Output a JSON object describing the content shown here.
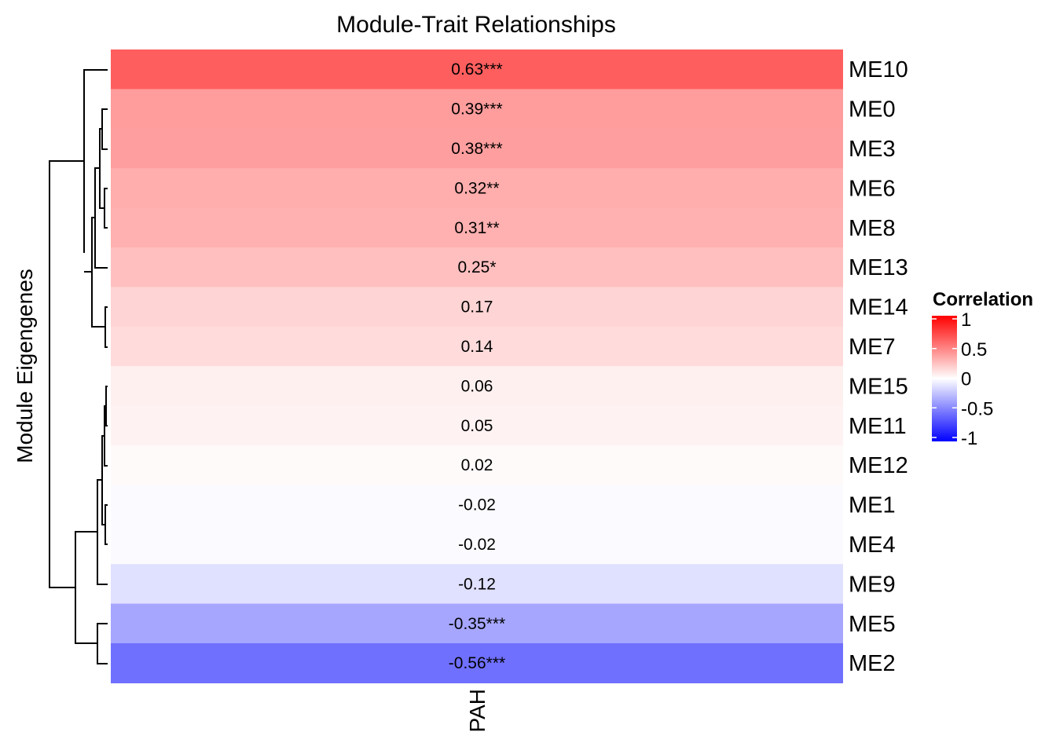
{
  "chart_data": {
    "type": "heatmap",
    "title": "Module-Trait Relationships",
    "xlabel": "",
    "ylabel": "Module Eigengenes",
    "columns": [
      "PAH"
    ],
    "rows": [
      "ME10",
      "ME0",
      "ME3",
      "ME6",
      "ME8",
      "ME13",
      "ME14",
      "ME7",
      "ME15",
      "ME11",
      "ME12",
      "ME1",
      "ME4",
      "ME9",
      "ME5",
      "ME2"
    ],
    "values": [
      0.63,
      0.39,
      0.38,
      0.32,
      0.31,
      0.25,
      0.17,
      0.14,
      0.06,
      0.05,
      0.02,
      -0.02,
      -0.02,
      -0.12,
      -0.35,
      -0.56
    ],
    "labels": [
      "0.63***",
      "0.39***",
      "0.38***",
      "0.32**",
      "0.31**",
      "0.25*",
      "0.17",
      "0.14",
      "0.06",
      "0.05",
      "0.02",
      "-0.02",
      "-0.02",
      "-0.12",
      "-0.35***",
      "-0.56***"
    ],
    "color_scale": {
      "min": -1,
      "max": 1,
      "low": "#0000FF",
      "mid": "#FFFFFF",
      "high": "#FF0000"
    },
    "legend": {
      "title": "Correlation",
      "position": "right",
      "ticks": [
        1,
        0.5,
        0,
        -0.5,
        -1
      ],
      "tick_labels": [
        "1",
        "0.5",
        "0",
        "-0.5",
        "-1"
      ]
    },
    "dendrogram": "left"
  }
}
